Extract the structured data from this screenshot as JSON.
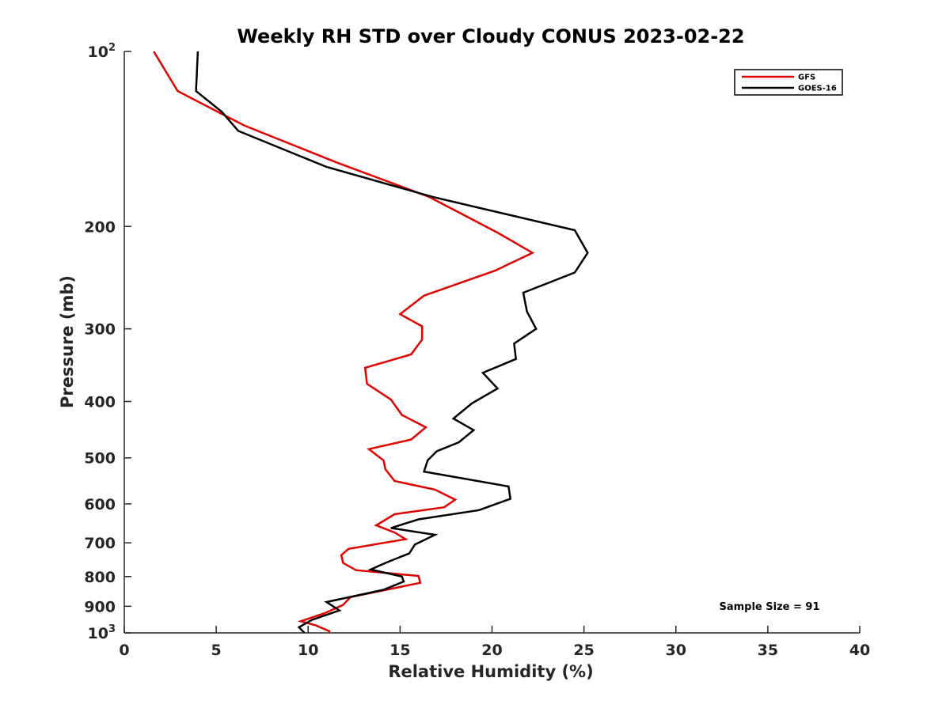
{
  "chart_data": {
    "type": "line",
    "title": "Weekly RH STD over Cloudy CONUS 2023-02-22",
    "xlabel": "Relative Humidity (%)",
    "ylabel": "Pressure (mb)",
    "xlim": [
      0,
      40
    ],
    "ylim": [
      100,
      1000
    ],
    "yscale": "log",
    "y_reversed": true,
    "grid": false,
    "legend_position": "top-right",
    "x_ticks": [
      "0",
      "5",
      "10",
      "15",
      "20",
      "25",
      "30",
      "35",
      "40"
    ],
    "y_ticks": [
      {
        "value": 100,
        "base": "10",
        "exp": "2"
      },
      {
        "value": 200,
        "label": "200"
      },
      {
        "value": 300,
        "label": "300"
      },
      {
        "value": 400,
        "label": "400"
      },
      {
        "value": 500,
        "label": "500"
      },
      {
        "value": 600,
        "label": "600"
      },
      {
        "value": 700,
        "label": "700"
      },
      {
        "value": 800,
        "label": "800"
      },
      {
        "value": 900,
        "label": "900"
      },
      {
        "value": 1000,
        "base": "10",
        "exp": "3"
      }
    ],
    "annotation": "Sample Size = 91",
    "series": [
      {
        "name": "GFS",
        "color": "#e00000",
        "points": [
          [
            1.6,
            100
          ],
          [
            2.9,
            117
          ],
          [
            6.5,
            134
          ],
          [
            11.5,
            155
          ],
          [
            16.6,
            178
          ],
          [
            20.3,
            205
          ],
          [
            22.2,
            222
          ],
          [
            20.2,
            238
          ],
          [
            16.3,
            263
          ],
          [
            15.0,
            283
          ],
          [
            16.2,
            297
          ],
          [
            16.2,
            313
          ],
          [
            15.6,
            332
          ],
          [
            13.1,
            350
          ],
          [
            13.2,
            373
          ],
          [
            14.5,
            397
          ],
          [
            15.1,
            422
          ],
          [
            16.4,
            443
          ],
          [
            15.6,
            465
          ],
          [
            13.3,
            483
          ],
          [
            14.1,
            505
          ],
          [
            14.2,
            523
          ],
          [
            14.7,
            548
          ],
          [
            16.9,
            567
          ],
          [
            18.0,
            590
          ],
          [
            17.4,
            608
          ],
          [
            14.7,
            625
          ],
          [
            13.7,
            653
          ],
          [
            14.7,
            672
          ],
          [
            15.3,
            690
          ],
          [
            12.2,
            717
          ],
          [
            11.8,
            735
          ],
          [
            11.9,
            758
          ],
          [
            12.6,
            780
          ],
          [
            16.0,
            798
          ],
          [
            16.1,
            820
          ],
          [
            12.3,
            868
          ],
          [
            11.9,
            895
          ],
          [
            10.9,
            925
          ],
          [
            9.6,
            955
          ],
          [
            10.4,
            970
          ],
          [
            11.2,
            995
          ]
        ]
      },
      {
        "name": "GOES-16",
        "color": "#000000",
        "points": [
          [
            4.0,
            100
          ],
          [
            3.9,
            117
          ],
          [
            5.3,
            127
          ],
          [
            6.2,
            137
          ],
          [
            11.0,
            158
          ],
          [
            16.8,
            178
          ],
          [
            24.5,
            203
          ],
          [
            25.2,
            222
          ],
          [
            24.5,
            240
          ],
          [
            21.7,
            260
          ],
          [
            21.9,
            280
          ],
          [
            22.4,
            300
          ],
          [
            21.2,
            318
          ],
          [
            21.3,
            338
          ],
          [
            19.5,
            357
          ],
          [
            20.3,
            380
          ],
          [
            18.9,
            403
          ],
          [
            17.9,
            428
          ],
          [
            19.0,
            448
          ],
          [
            18.2,
            470
          ],
          [
            17.0,
            487
          ],
          [
            16.5,
            505
          ],
          [
            16.3,
            528
          ],
          [
            20.9,
            560
          ],
          [
            21.0,
            588
          ],
          [
            19.3,
            615
          ],
          [
            16.0,
            638
          ],
          [
            14.5,
            660
          ],
          [
            16.9,
            678
          ],
          [
            15.8,
            705
          ],
          [
            15.5,
            730
          ],
          [
            14.2,
            758
          ],
          [
            13.4,
            778
          ],
          [
            15.1,
            800
          ],
          [
            15.2,
            816
          ],
          [
            14.1,
            843
          ],
          [
            11.0,
            885
          ],
          [
            11.7,
            915
          ],
          [
            10.2,
            950
          ],
          [
            9.5,
            978
          ],
          [
            9.8,
            1000
          ]
        ]
      }
    ]
  }
}
